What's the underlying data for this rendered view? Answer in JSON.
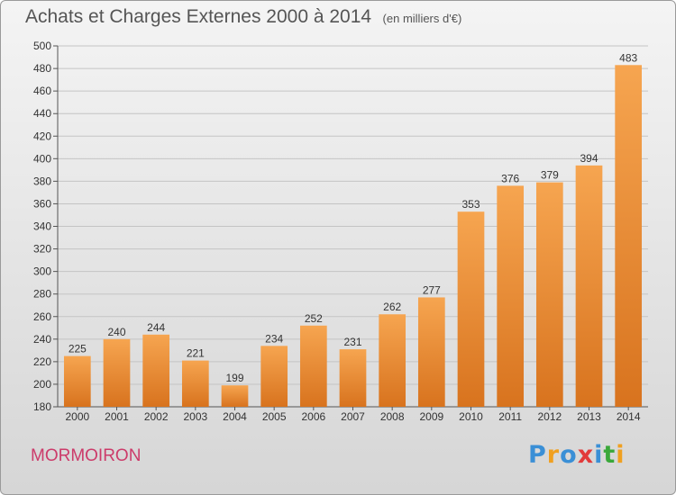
{
  "title": "Achats et Charges Externes 2000 à 2014",
  "unit_note": "(en milliers d'€)",
  "commune": "MORMOIRON",
  "logo": {
    "text": "Proxiti",
    "letters": [
      {
        "ch": "P",
        "color": "#3a8fd6"
      },
      {
        "ch": "r",
        "color": "#f0a020"
      },
      {
        "ch": "o",
        "color": "#3a8fd6"
      },
      {
        "ch": "x",
        "color": "#e23a3a"
      },
      {
        "ch": "i",
        "color": "#3a8fd6"
      },
      {
        "ch": "t",
        "color": "#3aa83a"
      },
      {
        "ch": "i",
        "color": "#f0a020"
      }
    ]
  },
  "chart_data": {
    "type": "bar",
    "categories": [
      "2000",
      "2001",
      "2002",
      "2003",
      "2004",
      "2005",
      "2006",
      "2007",
      "2008",
      "2009",
      "2010",
      "2011",
      "2012",
      "2013",
      "2014"
    ],
    "values": [
      225,
      240,
      244,
      221,
      199,
      234,
      252,
      231,
      262,
      277,
      353,
      376,
      379,
      394,
      483
    ],
    "title": "Achats et Charges Externes 2000 à 2014",
    "ylim": [
      180,
      500
    ],
    "yticks": [
      180,
      200,
      220,
      240,
      260,
      280,
      300,
      320,
      340,
      360,
      380,
      400,
      420,
      440,
      460,
      480,
      500
    ],
    "grid": true,
    "bar_color": "#f09a3e"
  }
}
